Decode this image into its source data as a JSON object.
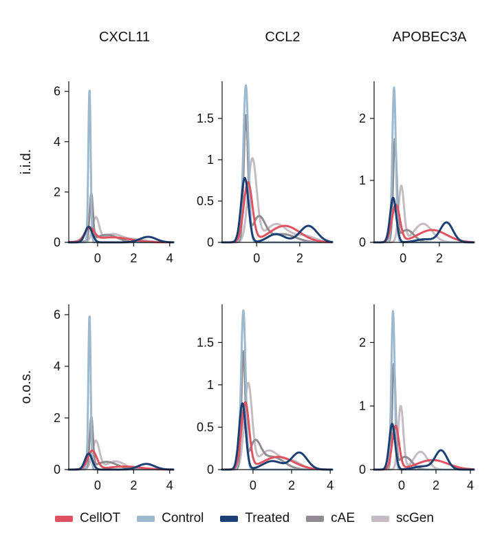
{
  "chart_data": {
    "type": "line",
    "kind": "kernel density estimate grid",
    "columns": [
      "CXCL11",
      "CCL2",
      "APOBEC3A"
    ],
    "rows": [
      "i.i.d.",
      "o.o.s."
    ],
    "series": [
      {
        "name": "CellOT",
        "color": "#e0525f"
      },
      {
        "name": "Control",
        "color": "#9db9cf"
      },
      {
        "name": "Treated",
        "color": "#1c3f73"
      },
      {
        "name": "cAE",
        "color": "#8f8b90"
      },
      {
        "name": "scGen",
        "color": "#c4bcc2"
      }
    ],
    "panels": [
      {
        "name": "CXCL11 i.i.d.",
        "column": "CXCL11",
        "row": "i.i.d.",
        "xlim": [
          -1.6,
          4.2
        ],
        "ylim": [
          0,
          6.4
        ],
        "xticks": [
          0,
          2,
          4
        ],
        "yticks": [
          0,
          2,
          4,
          6
        ],
        "curves": {
          "CellOT": [
            {
              "m": -0.45,
              "s": 0.26,
              "a": 0.5
            },
            {
              "m": 0.8,
              "s": 1.0,
              "a": 0.2
            }
          ],
          "Control": [
            {
              "m": -0.45,
              "s": 0.065,
              "a": 6.1
            }
          ],
          "Treated": [
            {
              "m": -0.5,
              "s": 0.2,
              "a": 0.62
            },
            {
              "m": 2.8,
              "s": 0.45,
              "a": 0.22
            }
          ],
          "cAE": [
            {
              "m": -0.35,
              "s": 0.09,
              "a": 1.85
            },
            {
              "m": 0.5,
              "s": 0.6,
              "a": 0.3
            }
          ],
          "scGen": [
            {
              "m": -0.1,
              "s": 0.18,
              "a": 0.95
            },
            {
              "m": 0.8,
              "s": 0.5,
              "a": 0.3
            },
            {
              "m": 2.0,
              "s": 0.7,
              "a": 0.12
            }
          ]
        }
      },
      {
        "name": "CCL2 i.i.d.",
        "column": "CCL2",
        "row": "i.i.d.",
        "xlim": [
          -1.6,
          3.5
        ],
        "ylim": [
          0,
          1.95
        ],
        "xticks": [
          0,
          2
        ],
        "yticks": [
          0,
          0.5,
          1.0,
          1.5
        ],
        "curves": {
          "CellOT": [
            {
              "m": -0.4,
              "s": 0.2,
              "a": 0.72
            },
            {
              "m": 1.3,
              "s": 0.7,
              "a": 0.2
            }
          ],
          "Control": [
            {
              "m": -0.5,
              "s": 0.12,
              "a": 1.9
            }
          ],
          "Treated": [
            {
              "m": -0.55,
              "s": 0.17,
              "a": 0.78
            },
            {
              "m": 2.4,
              "s": 0.4,
              "a": 0.2
            },
            {
              "m": 0.9,
              "s": 0.4,
              "a": 0.1
            }
          ],
          "cAE": [
            {
              "m": -0.5,
              "s": 0.1,
              "a": 1.5
            },
            {
              "m": 0.1,
              "s": 0.3,
              "a": 0.3
            },
            {
              "m": 1.2,
              "s": 0.6,
              "a": 0.1
            }
          ],
          "scGen": [
            {
              "m": -0.2,
              "s": 0.2,
              "a": 1.0
            },
            {
              "m": 0.9,
              "s": 0.5,
              "a": 0.22
            },
            {
              "m": 2.2,
              "s": 0.5,
              "a": 0.08
            }
          ]
        }
      },
      {
        "name": "APOBEC3A i.i.d.",
        "column": "APOBEC3A",
        "row": "i.i.d.",
        "xlim": [
          -1.6,
          3.9
        ],
        "ylim": [
          0,
          2.6
        ],
        "xticks": [
          0,
          2
        ],
        "yticks": [
          0,
          1,
          2
        ],
        "curves": {
          "CellOT": [
            {
              "m": -0.4,
              "s": 0.22,
              "a": 0.6
            },
            {
              "m": 1.6,
              "s": 0.8,
              "a": 0.2
            }
          ],
          "Control": [
            {
              "m": -0.5,
              "s": 0.1,
              "a": 2.5
            }
          ],
          "Treated": [
            {
              "m": -0.55,
              "s": 0.17,
              "a": 0.72
            },
            {
              "m": 2.4,
              "s": 0.35,
              "a": 0.32
            },
            {
              "m": 1.2,
              "s": 0.5,
              "a": 0.05
            }
          ],
          "cAE": [
            {
              "m": -0.45,
              "s": 0.1,
              "a": 1.62
            },
            {
              "m": 0.2,
              "s": 0.4,
              "a": 0.2
            }
          ],
          "scGen": [
            {
              "m": -0.1,
              "s": 0.15,
              "a": 0.9
            },
            {
              "m": 1.1,
              "s": 0.5,
              "a": 0.3
            }
          ]
        }
      },
      {
        "name": "CXCL11 o.o.s.",
        "column": "CXCL11",
        "row": "o.o.s.",
        "xlim": [
          -1.6,
          4.2
        ],
        "ylim": [
          0,
          6.4
        ],
        "xticks": [
          0,
          2,
          4
        ],
        "yticks": [
          0,
          2,
          4,
          6
        ],
        "curves": {
          "CellOT": [
            {
              "m": -0.3,
              "s": 0.25,
              "a": 0.72
            },
            {
              "m": 1.5,
              "s": 0.9,
              "a": 0.12
            }
          ],
          "Control": [
            {
              "m": -0.45,
              "s": 0.065,
              "a": 6.0
            }
          ],
          "Treated": [
            {
              "m": -0.5,
              "s": 0.2,
              "a": 0.62
            },
            {
              "m": 2.7,
              "s": 0.45,
              "a": 0.22
            }
          ],
          "cAE": [
            {
              "m": -0.35,
              "s": 0.09,
              "a": 1.95
            },
            {
              "m": 0.5,
              "s": 0.6,
              "a": 0.3
            }
          ],
          "scGen": [
            {
              "m": -0.1,
              "s": 0.2,
              "a": 1.1
            },
            {
              "m": 1.0,
              "s": 0.5,
              "a": 0.32
            }
          ]
        }
      },
      {
        "name": "CCL2 o.o.s.",
        "column": "CCL2",
        "row": "o.o.s.",
        "xlim": [
          -1.6,
          4.1
        ],
        "ylim": [
          0,
          1.95
        ],
        "xticks": [
          0,
          2,
          4
        ],
        "yticks": [
          0,
          0.5,
          1.0,
          1.5
        ],
        "curves": {
          "CellOT": [
            {
              "m": -0.4,
              "s": 0.2,
              "a": 0.78
            },
            {
              "m": 1.3,
              "s": 0.8,
              "a": 0.15
            }
          ],
          "Control": [
            {
              "m": -0.5,
              "s": 0.12,
              "a": 1.88
            }
          ],
          "Treated": [
            {
              "m": -0.55,
              "s": 0.17,
              "a": 0.78
            },
            {
              "m": 2.4,
              "s": 0.4,
              "a": 0.2
            },
            {
              "m": 1.0,
              "s": 0.5,
              "a": 0.1
            }
          ],
          "cAE": [
            {
              "m": -0.5,
              "s": 0.1,
              "a": 1.35
            },
            {
              "m": 0.1,
              "s": 0.3,
              "a": 0.3
            },
            {
              "m": 1.0,
              "s": 0.6,
              "a": 0.15
            }
          ],
          "scGen": [
            {
              "m": -0.25,
              "s": 0.2,
              "a": 1.0
            },
            {
              "m": 0.8,
              "s": 0.5,
              "a": 0.22
            },
            {
              "m": 2.0,
              "s": 0.5,
              "a": 0.1
            }
          ]
        }
      },
      {
        "name": "APOBEC3A o.o.s.",
        "column": "APOBEC3A",
        "row": "o.o.s.",
        "xlim": [
          -1.6,
          4.2
        ],
        "ylim": [
          0,
          2.6
        ],
        "xticks": [
          0,
          2,
          4
        ],
        "yticks": [
          0,
          1,
          2
        ],
        "curves": {
          "CellOT": [
            {
              "m": -0.35,
              "s": 0.2,
              "a": 0.68
            },
            {
              "m": 1.8,
              "s": 0.9,
              "a": 0.15
            }
          ],
          "Control": [
            {
              "m": -0.5,
              "s": 0.1,
              "a": 2.5
            }
          ],
          "Treated": [
            {
              "m": -0.55,
              "s": 0.17,
              "a": 0.72
            },
            {
              "m": 2.3,
              "s": 0.35,
              "a": 0.3
            },
            {
              "m": 1.2,
              "s": 0.5,
              "a": 0.05
            }
          ],
          "cAE": [
            {
              "m": -0.45,
              "s": 0.1,
              "a": 1.62
            },
            {
              "m": 0.2,
              "s": 0.4,
              "a": 0.2
            }
          ],
          "scGen": [
            {
              "m": -0.05,
              "s": 0.15,
              "a": 1.0
            },
            {
              "m": 1.1,
              "s": 0.4,
              "a": 0.28
            }
          ]
        }
      }
    ]
  }
}
